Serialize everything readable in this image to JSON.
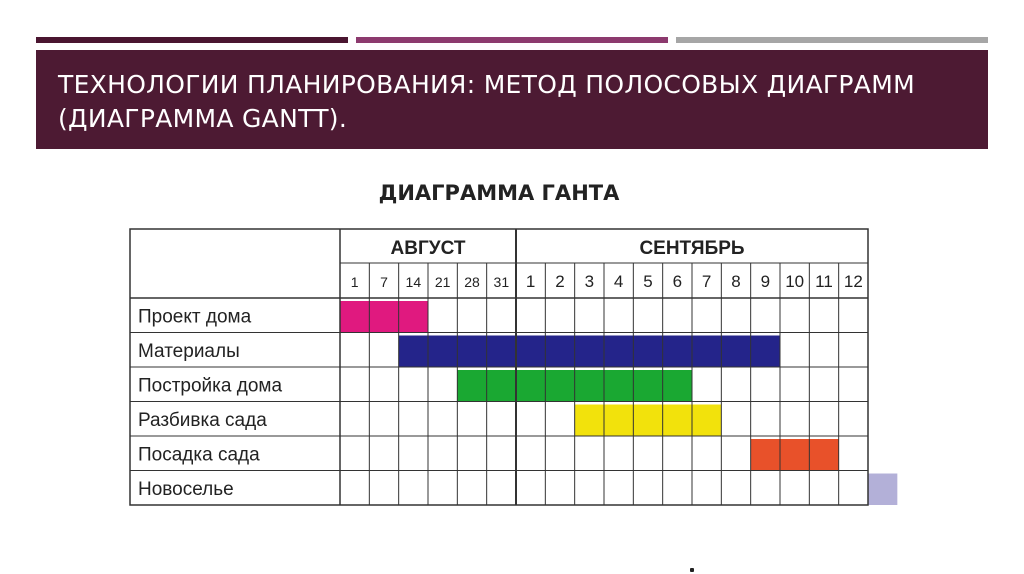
{
  "slide": {
    "title_line1": "ТЕХНОЛОГИИ ПЛАНИРОВАНИЯ: МЕТОД ПОЛОСОВЫХ ДИАГРАММ",
    "title_line2": "(ДИАГРАММА GANTT).",
    "accent_colors": [
      "#4a1530",
      "#8c3a6e",
      "#a6a6a6"
    ],
    "band_color": "#4d1a33"
  },
  "chart_data": {
    "type": "gantt",
    "title": "ДИАГРАММА ГАНТА",
    "months": [
      {
        "name": "АВГУСТ",
        "days": [
          "1",
          "7",
          "14",
          "21",
          "28",
          "31"
        ]
      },
      {
        "name": "СЕНТЯБРЬ",
        "days": [
          "1",
          "2",
          "3",
          "4",
          "5",
          "6",
          "7",
          "8",
          "9",
          "10",
          "11",
          "12"
        ]
      }
    ],
    "tasks": [
      {
        "name": "Проект дома",
        "start": 0,
        "end": 3,
        "color": "#e0197f"
      },
      {
        "name": "Материалы",
        "start": 2,
        "end": 15,
        "color": "#24248a"
      },
      {
        "name": "Постройка дома",
        "start": 4,
        "end": 12,
        "color": "#1aa832"
      },
      {
        "name": "Разбивка сада",
        "start": 8,
        "end": 13,
        "color": "#f2e20c"
      },
      {
        "name": "Посадка сада",
        "start": 14,
        "end": 17,
        "color": "#e8512a"
      },
      {
        "name": "Новоселье",
        "start": 18,
        "end": 19,
        "color": "#b3b0d8"
      }
    ],
    "task_range_units": "column index (0 = АВГУСТ 1)"
  }
}
